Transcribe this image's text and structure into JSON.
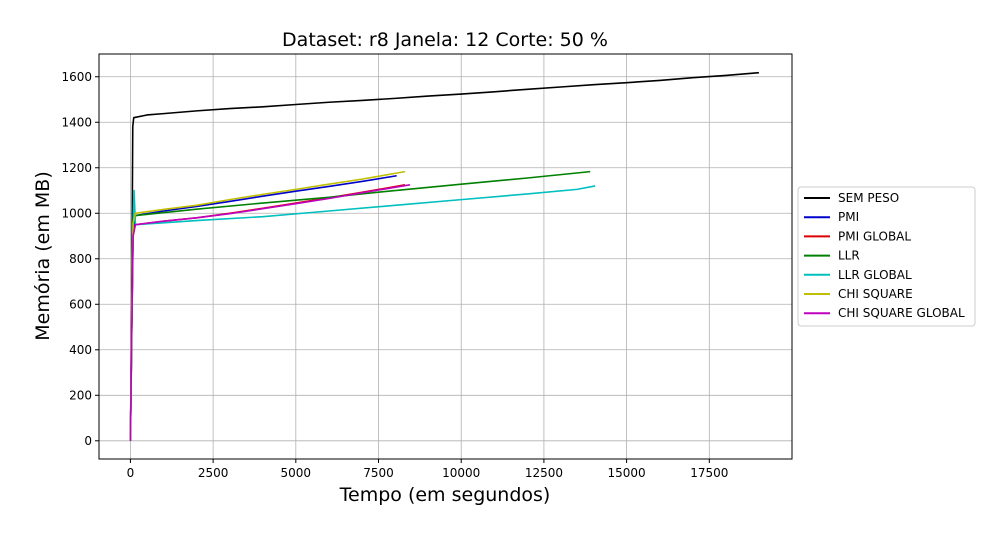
{
  "chart_data": {
    "type": "line",
    "title": "Dataset: r8 Janela: 12 Corte: 50 %",
    "xlabel": "Tempo (em segundos)",
    "ylabel": "Memória (em MB)",
    "xlim": [
      -950,
      20000
    ],
    "ylim": [
      -80,
      1700
    ],
    "xticks": [
      0,
      2500,
      5000,
      7500,
      10000,
      12500,
      15000,
      17500
    ],
    "xtick_labels": [
      "0",
      "2500",
      "5000",
      "7500",
      "10000",
      "12500",
      "15000",
      "17500"
    ],
    "yticks": [
      0,
      200,
      400,
      600,
      800,
      1000,
      1200,
      1400,
      1600
    ],
    "ytick_labels": [
      "0",
      "200",
      "400",
      "600",
      "800",
      "1000",
      "1200",
      "1400",
      "1600"
    ],
    "grid": true,
    "legend_position": "right",
    "series": [
      {
        "name": "SEM PESO",
        "color": "#000000",
        "x": [
          0,
          40,
          70,
          100,
          500,
          1000,
          2000,
          3000,
          4000,
          5000,
          6000,
          7000,
          8000,
          9000,
          10000,
          11000,
          12000,
          13000,
          14000,
          15000,
          16000,
          17000,
          18000,
          19000
        ],
        "y": [
          0,
          600,
          1380,
          1420,
          1432,
          1438,
          1450,
          1460,
          1468,
          1478,
          1488,
          1496,
          1505,
          1515,
          1524,
          1534,
          1545,
          1555,
          1565,
          1574,
          1584,
          1596,
          1606,
          1618
        ]
      },
      {
        "name": "PMI",
        "color": "#0000cc",
        "x": [
          0,
          40,
          80,
          150,
          1000,
          2000,
          3000,
          4000,
          5000,
          6000,
          7000,
          8050
        ],
        "y": [
          0,
          500,
          920,
          990,
          1010,
          1030,
          1052,
          1075,
          1097,
          1118,
          1140,
          1165
        ]
      },
      {
        "name": "PMI GLOBAL",
        "color": "#dd0000",
        "x": [
          0,
          40,
          80,
          150,
          1000,
          2000,
          3000,
          4000,
          5000,
          6000,
          7000,
          8300
        ],
        "y": [
          0,
          480,
          900,
          950,
          965,
          980,
          1000,
          1022,
          1045,
          1068,
          1092,
          1125
        ]
      },
      {
        "name": "LLR",
        "color": "#008000",
        "x": [
          0,
          40,
          80,
          150,
          2000,
          4000,
          6000,
          8000,
          10000,
          12000,
          13900
        ],
        "y": [
          0,
          500,
          950,
          990,
          1018,
          1045,
          1070,
          1100,
          1128,
          1155,
          1183
        ]
      },
      {
        "name": "LLR GLOBAL",
        "color": "#00bfbf",
        "x": [
          0,
          40,
          80,
          110,
          150,
          2000,
          4000,
          6000,
          8000,
          10000,
          12000,
          13500,
          14050
        ],
        "y": [
          0,
          500,
          950,
          1100,
          950,
          968,
          985,
          1010,
          1035,
          1060,
          1085,
          1105,
          1120
        ]
      },
      {
        "name": "CHI SQUARE",
        "color": "#bfbf00",
        "x": [
          0,
          40,
          80,
          150,
          1000,
          2000,
          3000,
          4000,
          5000,
          6000,
          7000,
          8300
        ],
        "y": [
          0,
          550,
          960,
          1000,
          1017,
          1035,
          1060,
          1083,
          1105,
          1128,
          1150,
          1183
        ]
      },
      {
        "name": "CHI SQUARE GLOBAL",
        "color": "#bf00bf",
        "x": [
          0,
          40,
          80,
          150,
          1000,
          2000,
          3000,
          4000,
          5000,
          6000,
          7000,
          8450
        ],
        "y": [
          0,
          480,
          900,
          950,
          965,
          980,
          998,
          1020,
          1042,
          1065,
          1090,
          1125
        ]
      }
    ]
  }
}
